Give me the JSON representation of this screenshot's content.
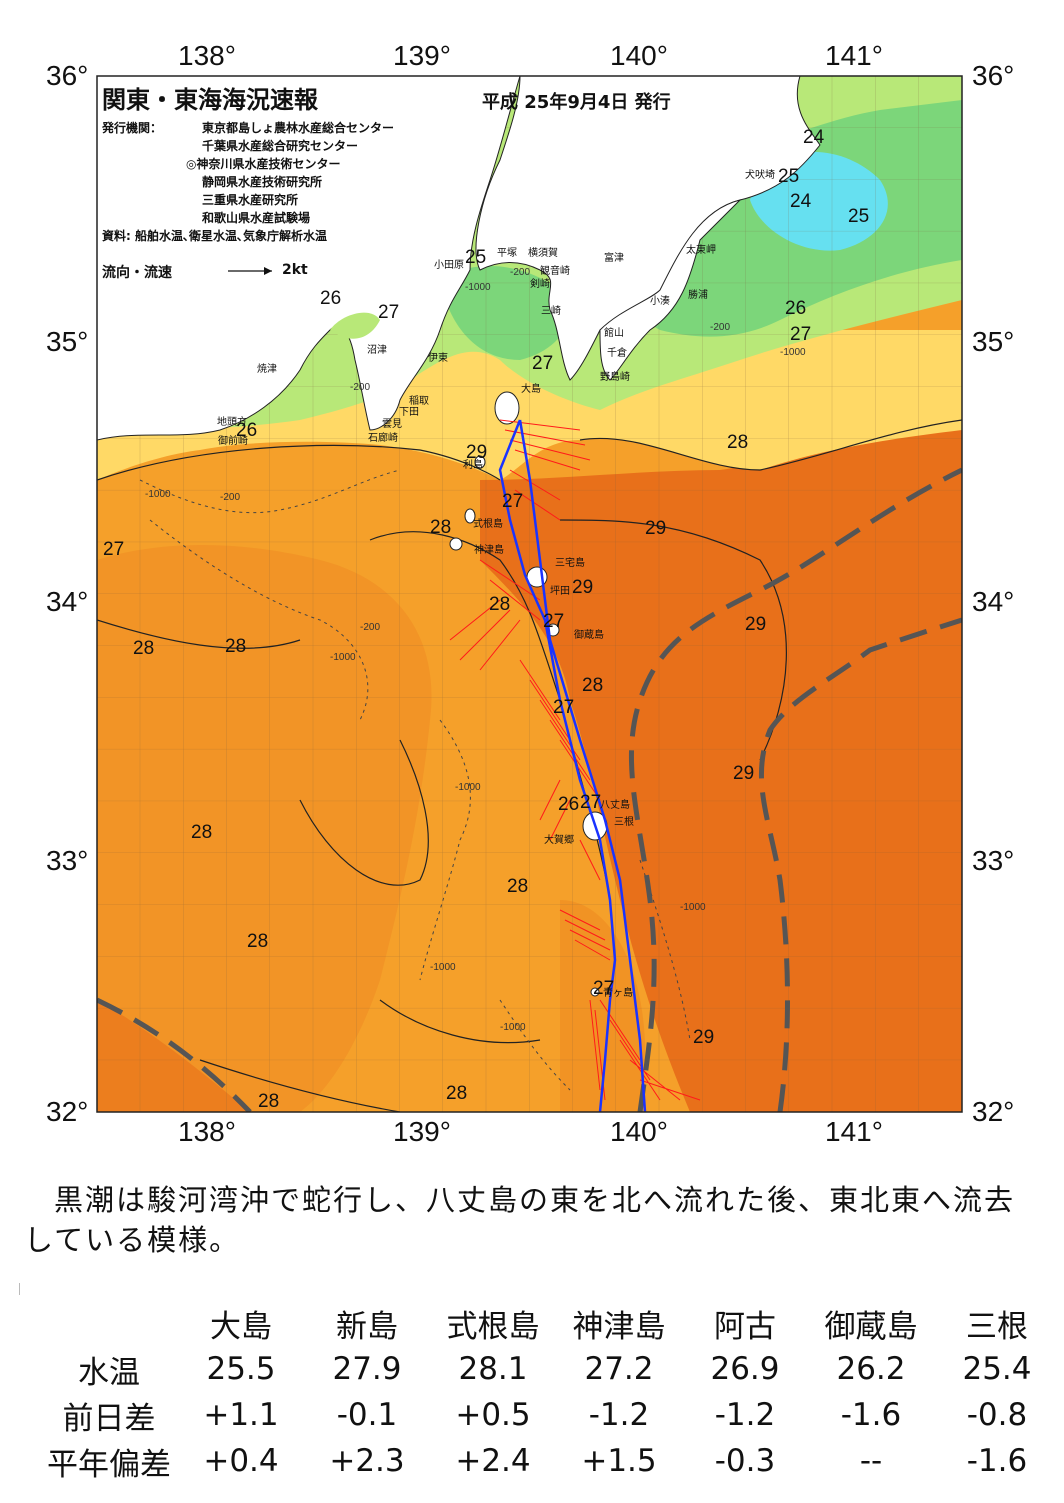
{
  "header": {
    "title": "関東・東海海況速報",
    "issue_date": "平成 25年9月4日 発行",
    "issuer_label": "発行機関：",
    "issuers": [
      "東京都島しょ農林水産総合センター",
      "千葉県水産総合研究センター",
      "◎神奈川県水産技術センター",
      "静岡県水産技術研究所",
      "三重県水産研究所",
      "和歌山県水産試験場"
    ],
    "sources": "資料: 船舶水温､衛星水温､気象庁解析水温",
    "legend_label": "流向・流速",
    "legend_value": "2kt"
  },
  "axes": {
    "lon_labels": [
      "138°",
      "139°",
      "140°",
      "141°"
    ],
    "lat_labels": [
      "36°",
      "35°",
      "34°",
      "33°",
      "32°"
    ]
  },
  "place_labels": [
    "犬吠埼",
    "太東岬",
    "勝浦",
    "小湊",
    "富津",
    "千倉",
    "館山",
    "野島崎",
    "横須賀",
    "平塚",
    "観音崎",
    "剣崎",
    "三崎",
    "小田原",
    "沼津",
    "伊東",
    "焼津",
    "稲取",
    "下田",
    "雲見",
    "石廊崎",
    "地頭方",
    "御前崎",
    "大島",
    "利島",
    "式根島",
    "神津島",
    "三宅島",
    "坪田",
    "御蔵島",
    "八丈島",
    "三根",
    "大賀郷",
    "青ヶ島"
  ],
  "isotherm_labels": [
    "24",
    "25",
    "26",
    "27",
    "28",
    "29"
  ],
  "depth_labels": [
    "-200",
    "-1000"
  ],
  "summary": "黒潮は駿河湾沖で蛇行し、八丈島の東を北へ流れた後、東北東へ流去している模様。",
  "table": {
    "columns": [
      "大島",
      "新島",
      "式根島",
      "神津島",
      "阿古",
      "御蔵島",
      "三根"
    ],
    "rows": [
      {
        "label": "水温",
        "values": [
          "25.5",
          "27.9",
          "28.1",
          "27.2",
          "26.9",
          "26.2",
          "25.4"
        ]
      },
      {
        "label": "前日差",
        "values": [
          "+1.1",
          "-0.1",
          "+0.5",
          "-1.2",
          "-1.2",
          "-1.6",
          "-0.8"
        ]
      },
      {
        "label": "平年偏差",
        "values": [
          "+0.4",
          "+2.3",
          "+2.4",
          "+1.5",
          "-0.3",
          "--",
          "-1.6"
        ]
      }
    ]
  },
  "colors": {
    "land": "#ffffff",
    "sst_24": "#66e0f0",
    "sst_25": "#7cd67a",
    "sst_26": "#b8e878",
    "sst_27": "#ffd966",
    "sst_28": "#f5a02a",
    "sst_29": "#e8701a",
    "current_dash": "#555555",
    "survey_track": "#1a33ff",
    "flow_vectors": "#ff1a1a"
  }
}
